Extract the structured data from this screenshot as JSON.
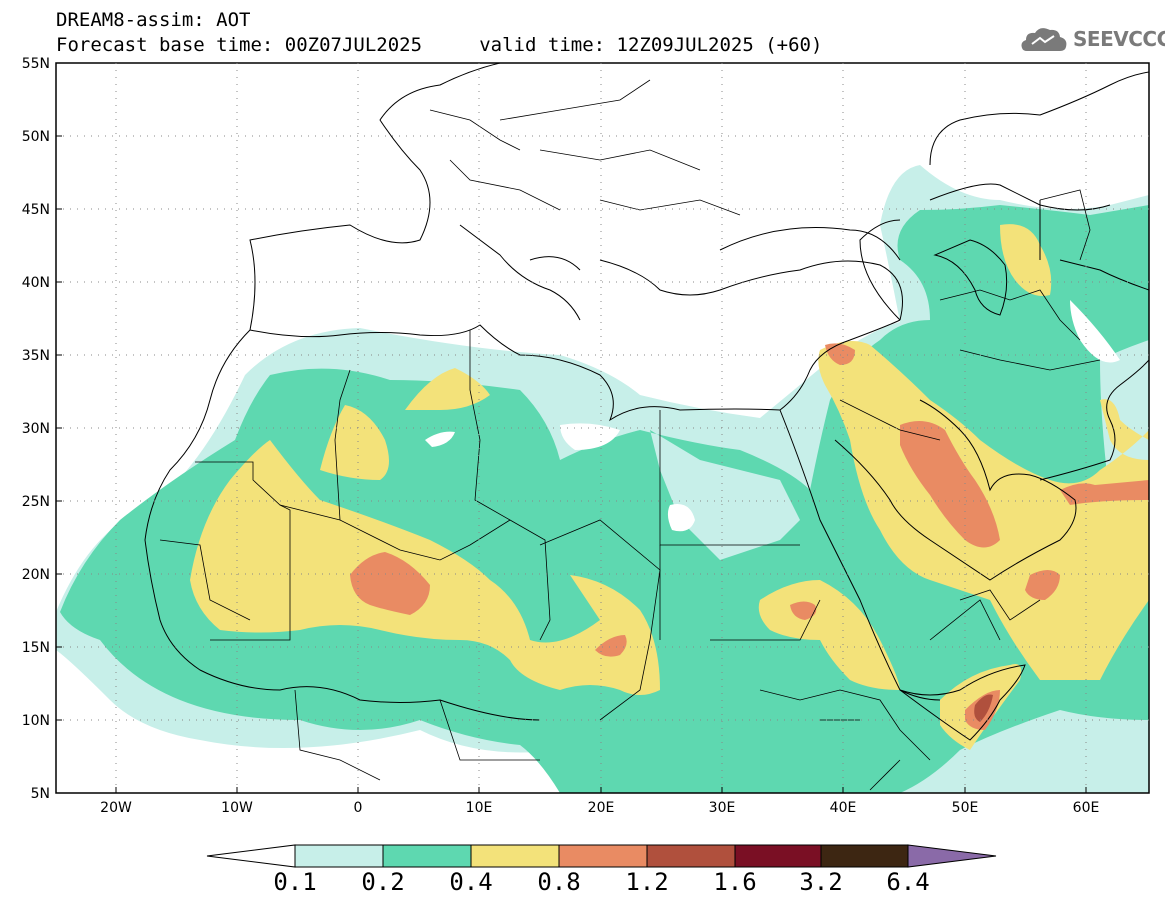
{
  "header": {
    "line1": "DREAM8-assim: AOT",
    "line2": "Forecast base time: 00Z07JUL2025     valid time: 12Z09JUL2025 (+60)"
  },
  "logo": {
    "text": "SEEVCCC",
    "icon": "cloud-icon"
  },
  "map": {
    "lat_labels": [
      "55N",
      "50N",
      "45N",
      "40N",
      "35N",
      "30N",
      "25N",
      "20N",
      "15N",
      "10N",
      "5N"
    ],
    "lon_labels": [
      "20W",
      "10W",
      "0",
      "10E",
      "20E",
      "30E",
      "40E",
      "50E",
      "60E"
    ]
  },
  "colorbar": {
    "levels": [
      "0.1",
      "0.2",
      "0.4",
      "0.8",
      "1.2",
      "1.6",
      "3.2",
      "6.4"
    ],
    "colors": [
      "#c7efe9",
      "#5ed8b0",
      "#f3e27a",
      "#e98b63",
      "#b0503d",
      "#7a0f24",
      "#3d2612",
      "#8a6aa8"
    ],
    "under_color": "#ffffff"
  },
  "colors": {
    "c1": "#c7efe9",
    "c2": "#5ed8b0",
    "c3": "#f3e27a",
    "c4": "#e98b63",
    "c5": "#b0503d"
  }
}
